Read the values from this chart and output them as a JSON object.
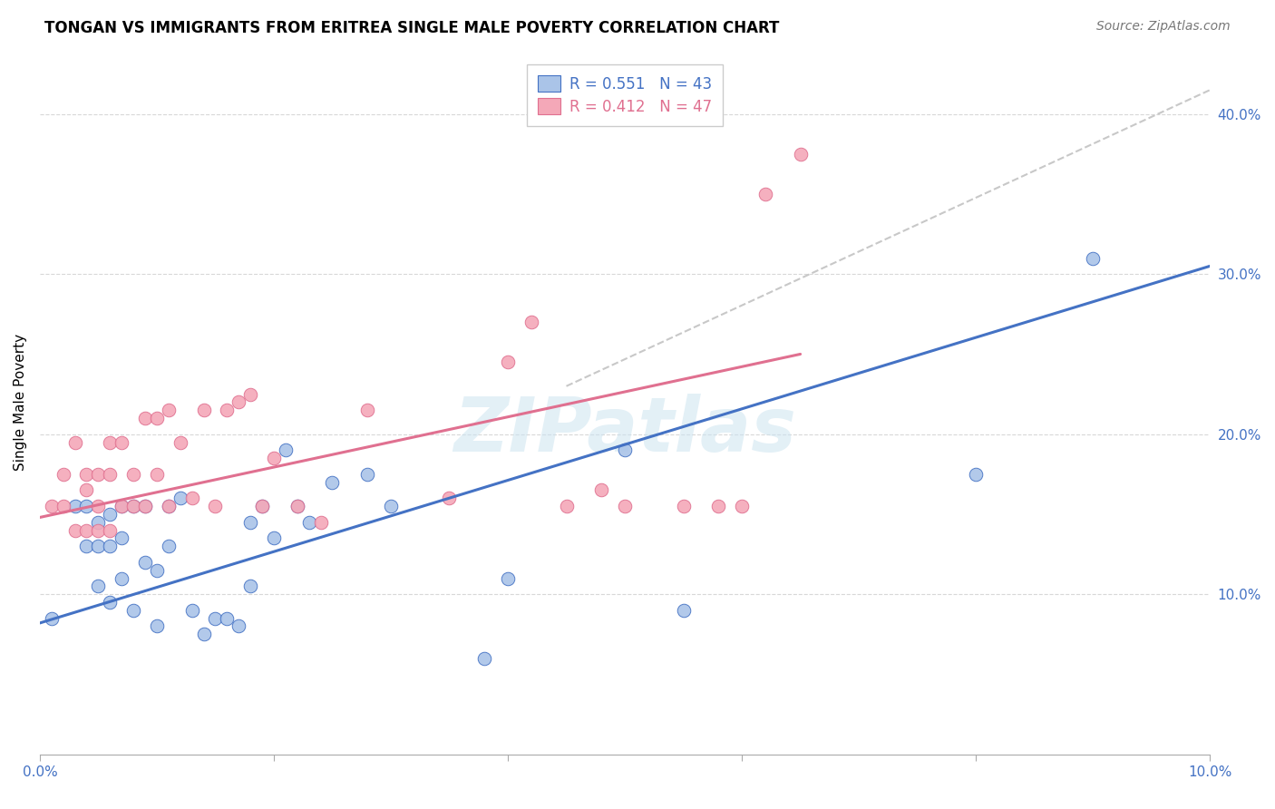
{
  "title": "TONGAN VS IMMIGRANTS FROM ERITREA SINGLE MALE POVERTY CORRELATION CHART",
  "source": "Source: ZipAtlas.com",
  "ylabel": "Single Male Poverty",
  "xlim": [
    0.0,
    0.1
  ],
  "ylim": [
    0.0,
    0.44
  ],
  "yticks": [
    0.1,
    0.2,
    0.3,
    0.4
  ],
  "ytick_labels": [
    "10.0%",
    "20.0%",
    "30.0%",
    "40.0%"
  ],
  "xticks": [
    0.0,
    0.02,
    0.04,
    0.06,
    0.08,
    0.1
  ],
  "xticklabels": [
    "0.0%",
    "",
    "",
    "",
    "",
    "10.0%"
  ],
  "legend_r1": "R = 0.551",
  "legend_n1": "N = 43",
  "legend_r2": "R = 0.412",
  "legend_n2": "N = 47",
  "tongan_color": "#aac4e8",
  "eritrea_color": "#f4a8b8",
  "trend_tongan_color": "#4472c4",
  "trend_eritrea_color": "#e07090",
  "dashed_line_color": "#c8c8c8",
  "watermark": "ZIPatlas",
  "tongan_x": [
    0.001,
    0.003,
    0.004,
    0.004,
    0.005,
    0.005,
    0.005,
    0.006,
    0.006,
    0.006,
    0.007,
    0.007,
    0.007,
    0.008,
    0.008,
    0.009,
    0.009,
    0.01,
    0.01,
    0.011,
    0.011,
    0.012,
    0.013,
    0.014,
    0.015,
    0.016,
    0.017,
    0.018,
    0.018,
    0.019,
    0.02,
    0.021,
    0.022,
    0.023,
    0.025,
    0.028,
    0.03,
    0.038,
    0.04,
    0.05,
    0.055,
    0.08,
    0.09
  ],
  "tongan_y": [
    0.085,
    0.155,
    0.13,
    0.155,
    0.105,
    0.13,
    0.145,
    0.095,
    0.13,
    0.15,
    0.11,
    0.135,
    0.155,
    0.09,
    0.155,
    0.12,
    0.155,
    0.08,
    0.115,
    0.13,
    0.155,
    0.16,
    0.09,
    0.075,
    0.085,
    0.085,
    0.08,
    0.105,
    0.145,
    0.155,
    0.135,
    0.19,
    0.155,
    0.145,
    0.17,
    0.175,
    0.155,
    0.06,
    0.11,
    0.19,
    0.09,
    0.175,
    0.31
  ],
  "eritrea_x": [
    0.001,
    0.002,
    0.002,
    0.003,
    0.003,
    0.004,
    0.004,
    0.004,
    0.005,
    0.005,
    0.005,
    0.006,
    0.006,
    0.006,
    0.007,
    0.007,
    0.008,
    0.008,
    0.009,
    0.009,
    0.01,
    0.01,
    0.011,
    0.011,
    0.012,
    0.013,
    0.014,
    0.015,
    0.016,
    0.017,
    0.018,
    0.019,
    0.02,
    0.022,
    0.024,
    0.028,
    0.035,
    0.04,
    0.042,
    0.045,
    0.048,
    0.05,
    0.055,
    0.058,
    0.06,
    0.062,
    0.065
  ],
  "eritrea_y": [
    0.155,
    0.155,
    0.175,
    0.14,
    0.195,
    0.14,
    0.165,
    0.175,
    0.14,
    0.155,
    0.175,
    0.14,
    0.175,
    0.195,
    0.155,
    0.195,
    0.155,
    0.175,
    0.155,
    0.21,
    0.175,
    0.21,
    0.155,
    0.215,
    0.195,
    0.16,
    0.215,
    0.155,
    0.215,
    0.22,
    0.225,
    0.155,
    0.185,
    0.155,
    0.145,
    0.215,
    0.16,
    0.245,
    0.27,
    0.155,
    0.165,
    0.155,
    0.155,
    0.155,
    0.155,
    0.35,
    0.375
  ],
  "tongan_trend_x0": 0.0,
  "tongan_trend_y0": 0.082,
  "tongan_trend_x1": 0.1,
  "tongan_trend_y1": 0.305,
  "eritrea_trend_x0": 0.0,
  "eritrea_trend_y0": 0.148,
  "eritrea_trend_x1": 0.065,
  "eritrea_trend_y1": 0.25,
  "dashed_trend_x0": 0.045,
  "dashed_trend_y0": 0.23,
  "dashed_trend_x1": 0.1,
  "dashed_trend_y1": 0.415
}
